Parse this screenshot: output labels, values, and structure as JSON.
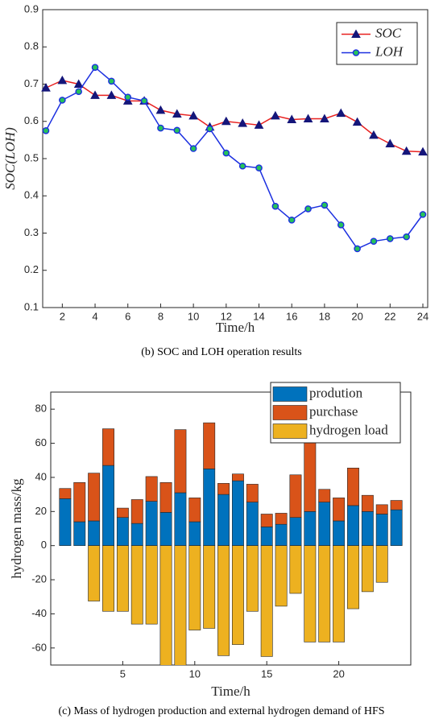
{
  "chart_data": [
    {
      "type": "line",
      "x": [
        1,
        2,
        3,
        4,
        5,
        6,
        7,
        8,
        9,
        10,
        11,
        12,
        13,
        14,
        15,
        16,
        17,
        18,
        19,
        20,
        21,
        22,
        23,
        24
      ],
      "series": [
        {
          "name": "SOC",
          "color": "#e8201f",
          "marker": "triangle",
          "marker_color": "#15167a",
          "values": [
            0.69,
            0.71,
            0.7,
            0.67,
            0.67,
            0.655,
            0.655,
            0.63,
            0.62,
            0.615,
            0.585,
            0.6,
            0.595,
            0.59,
            0.615,
            0.605,
            0.607,
            0.607,
            0.622,
            0.598,
            0.563,
            0.54,
            0.52,
            0.518
          ]
        },
        {
          "name": "LOH",
          "color": "#1b2fe0",
          "marker": "circle",
          "marker_color": "#26c25a",
          "values": [
            0.575,
            0.657,
            0.68,
            0.745,
            0.708,
            0.665,
            0.655,
            0.582,
            0.576,
            0.527,
            0.58,
            0.515,
            0.48,
            0.475,
            0.372,
            0.335,
            0.365,
            0.375,
            0.322,
            0.258,
            0.278,
            0.285,
            0.29,
            0.35
          ]
        }
      ],
      "xlim": [
        1,
        24
      ],
      "xticks": [
        2,
        4,
        6,
        8,
        10,
        12,
        14,
        16,
        18,
        20,
        22,
        24
      ],
      "ylim": [
        0.1,
        0.9
      ],
      "yticks": [
        0.1,
        0.2,
        0.3,
        0.4,
        0.5,
        0.6,
        0.7,
        0.8,
        0.9
      ],
      "x_label": "Time/h",
      "y_label": "SOC(LOH)",
      "legend": "upper right",
      "caption": "(b) SOC and LOH operation results"
    },
    {
      "type": "bar",
      "x": [
        1,
        2,
        3,
        4,
        5,
        6,
        7,
        8,
        9,
        10,
        11,
        12,
        13,
        14,
        15,
        16,
        17,
        18,
        19,
        20,
        21,
        22,
        23,
        24
      ],
      "series": [
        {
          "name": "prodution",
          "color": "#0072bd",
          "values": [
            27.5,
            14,
            14.5,
            47,
            16.5,
            13,
            26,
            19.5,
            31,
            14,
            45,
            30,
            38,
            25.5,
            11,
            12.5,
            16.5,
            20,
            25.5,
            14.5,
            23.5,
            20,
            18.5,
            21
          ]
        },
        {
          "name": "purchase",
          "color": "#d95319",
          "values": [
            6,
            23,
            28,
            21.5,
            5.5,
            14,
            14.5,
            17.5,
            37,
            14,
            27,
            6.5,
            4,
            10.5,
            7.5,
            6.5,
            25,
            41.5,
            7.5,
            13.5,
            22,
            9.5,
            5.5,
            5.5
          ]
        },
        {
          "name": "hydrogen load",
          "color": "#edb120",
          "values": [
            0,
            0,
            -32.5,
            -38.5,
            -38.5,
            -46,
            -46,
            -75,
            -75,
            -49.5,
            -48.5,
            -64.5,
            -58,
            -38.5,
            -65,
            -35.5,
            -28,
            -56.5,
            -56.5,
            -56.5,
            -37,
            -27,
            -21.5,
            0
          ]
        }
      ],
      "xlim": [
        0,
        25
      ],
      "xticks": [
        5,
        10,
        15,
        20
      ],
      "ylim": [
        -70,
        90
      ],
      "yticks": [
        -60,
        -40,
        -20,
        0,
        20,
        40,
        60,
        80
      ],
      "x_label": "Time/h",
      "y_label": "hydrogen mass/kg",
      "legend": "upper right",
      "caption": "(c) Mass of hydrogen production and external hydrogen demand of HFS"
    }
  ]
}
